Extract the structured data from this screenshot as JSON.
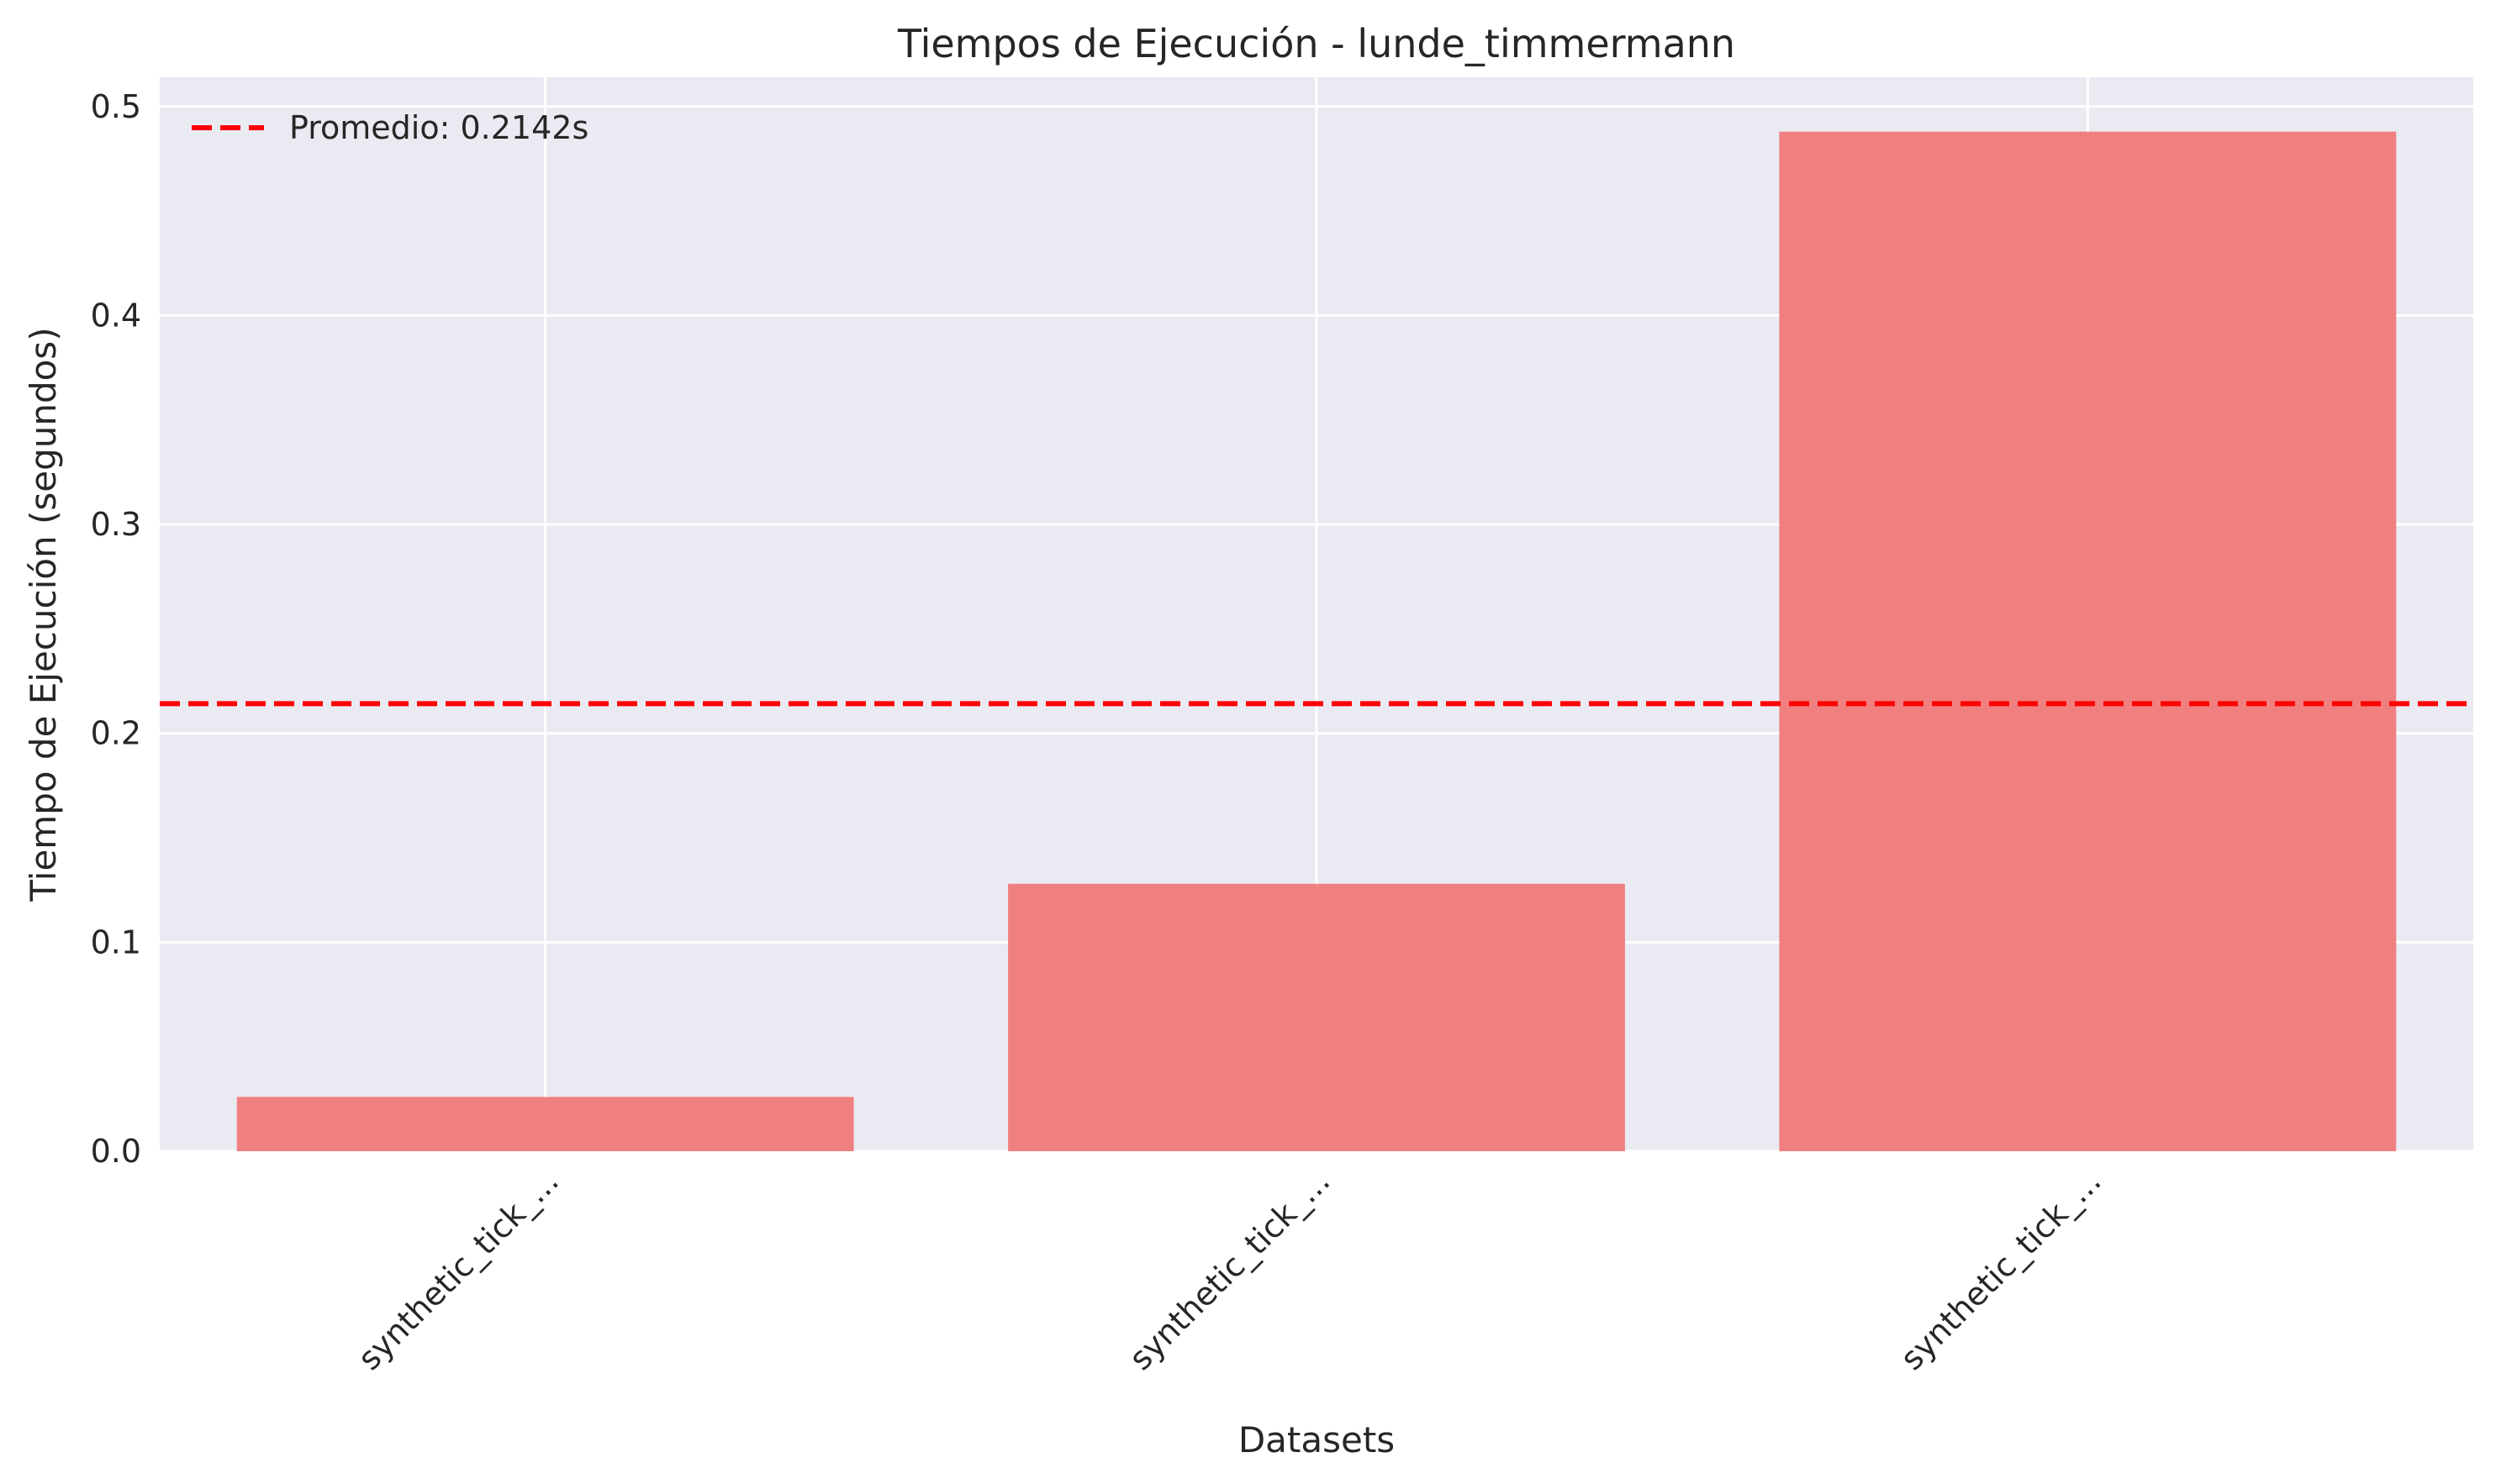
{
  "chart_data": {
    "type": "bar",
    "title": "Tiempos de Ejecución - lunde_timmermann",
    "xlabel": "Datasets",
    "ylabel": "Tiempo de Ejecución (segundos)",
    "categories": [
      "synthetic_tick_...",
      "synthetic_tick_...",
      "synthetic_tick_..."
    ],
    "series": [
      {
        "values": [
          0.026,
          0.128,
          0.488
        ],
        "color": "#f08080"
      }
    ],
    "ylim": [
      0,
      0.514
    ],
    "yticks": [
      "0.0",
      "0.1",
      "0.2",
      "0.3",
      "0.4",
      "0.5"
    ],
    "ytick_values": [
      0.0,
      0.1,
      0.2,
      0.3,
      0.4,
      0.5
    ],
    "grid": true,
    "background_color": "#eaeaf2",
    "reference_line": {
      "label": "Promedio: 0.2142s",
      "value": 0.2142,
      "color": "#ff0000",
      "style": "dashed"
    },
    "legend_position": "top-left"
  }
}
